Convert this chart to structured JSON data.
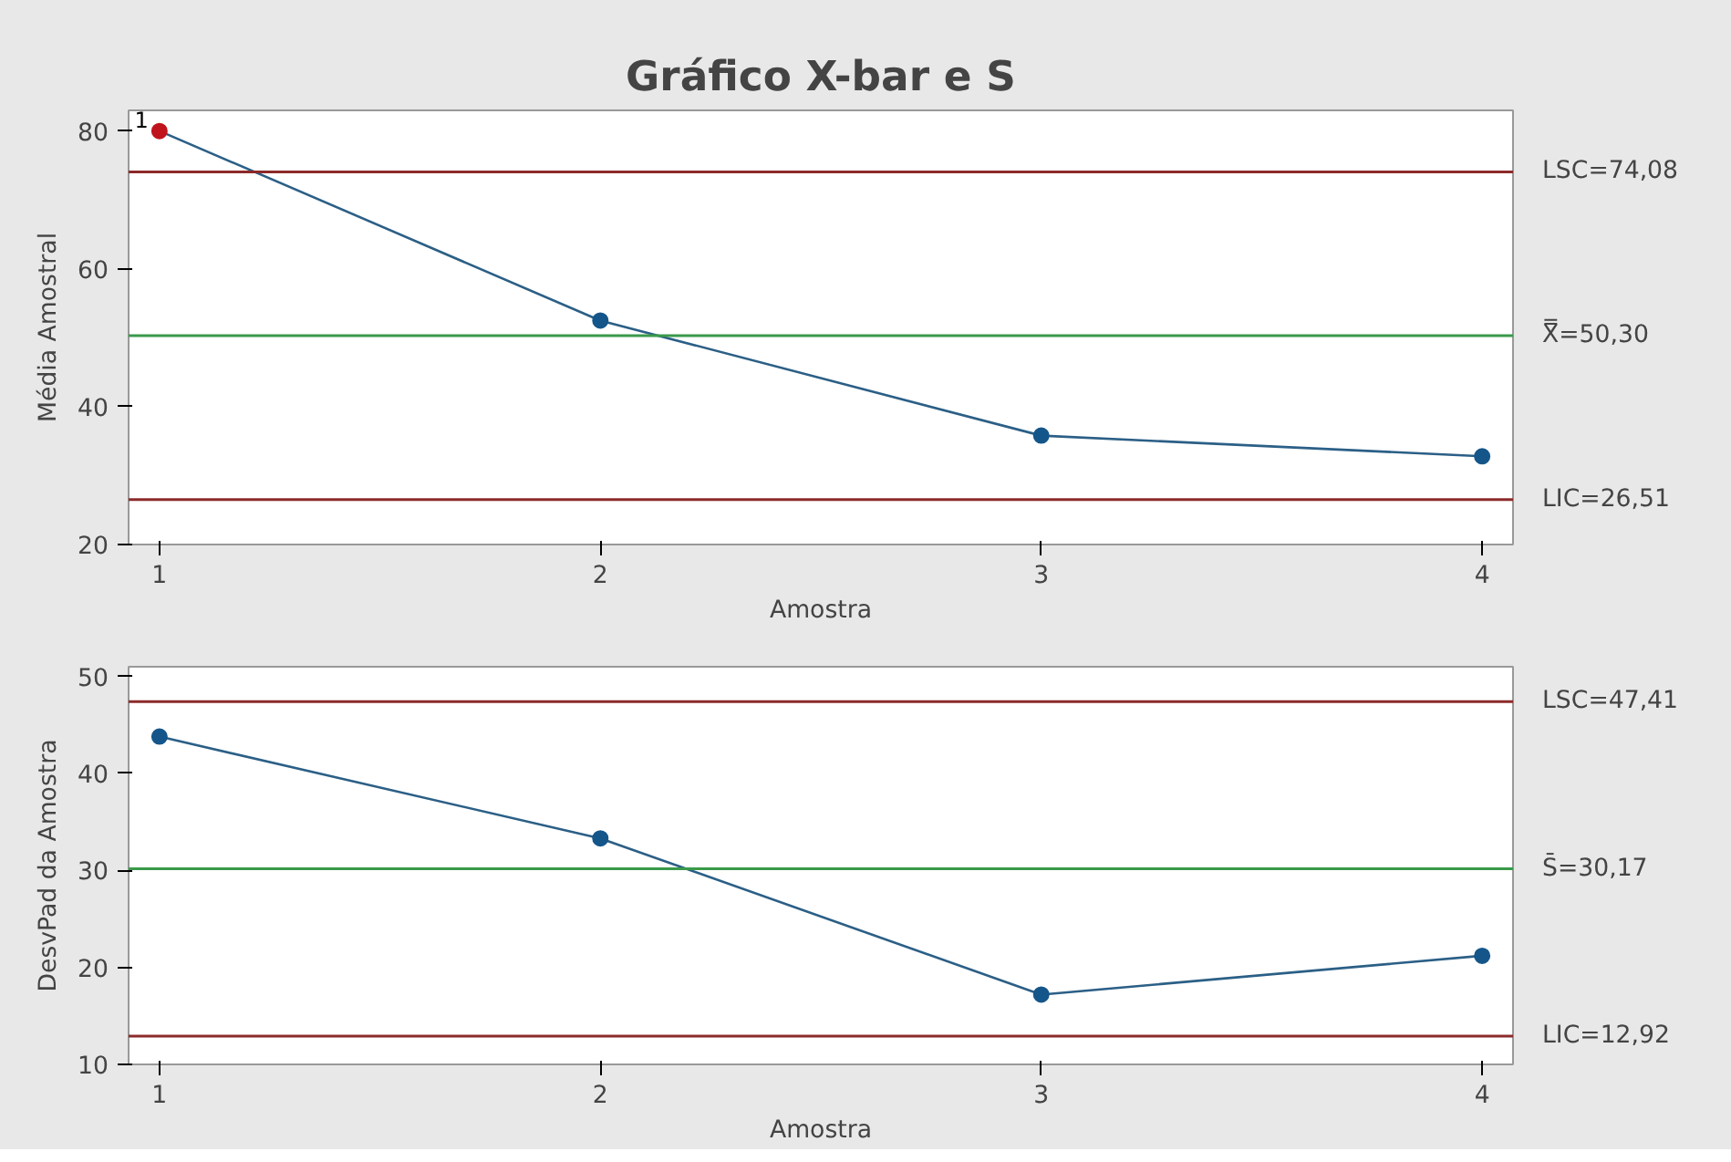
{
  "chart_data": [
    {
      "type": "line",
      "title": "Gráfico X-bar e S",
      "xlabel": "Amostra",
      "ylabel": "Média Amostral",
      "x": [
        1,
        2,
        3,
        4
      ],
      "series": [
        {
          "color": "#2b5f86",
          "colors": [
            "#c0141c",
            "#15568a",
            "#15568a",
            "#15568a"
          ],
          "values": [
            80,
            52.5,
            35.8,
            32.8
          ]
        }
      ],
      "xlim": [
        0.93,
        4.07
      ],
      "xticks": [
        1,
        2,
        3,
        4
      ],
      "ylim": [
        20,
        83
      ],
      "yticks": [
        20,
        40,
        60,
        80
      ],
      "grid": false,
      "marker": "circle",
      "line_style": "solid",
      "ref_lines": [
        {
          "axis": "y",
          "value": 74.08,
          "label": "LSC=74,08",
          "color": "#8c2a2a"
        },
        {
          "axis": "y",
          "value": 50.3,
          "label": "X̿=50,30",
          "color": "#3a9a4a"
        },
        {
          "axis": "y",
          "value": 26.51,
          "label": "LIC=26,51",
          "color": "#8c2a2a"
        }
      ],
      "annotations": [
        {
          "text": "1",
          "x": 1,
          "y": 80
        }
      ]
    },
    {
      "type": "line",
      "xlabel": "Amostra",
      "ylabel": "DesvPad da Amostra",
      "x": [
        1,
        2,
        3,
        4
      ],
      "series": [
        {
          "color": "#2b5f86",
          "colors": [
            "#15568a",
            "#15568a",
            "#15568a",
            "#15568a"
          ],
          "values": [
            43.8,
            33.3,
            17.2,
            21.2
          ]
        }
      ],
      "xlim": [
        0.93,
        4.07
      ],
      "xticks": [
        1,
        2,
        3,
        4
      ],
      "ylim": [
        10,
        51
      ],
      "yticks": [
        10,
        20,
        30,
        40,
        50
      ],
      "grid": false,
      "marker": "circle",
      "line_style": "solid",
      "ref_lines": [
        {
          "axis": "y",
          "value": 47.41,
          "label": "LSC=47,41",
          "color": "#8c2a2a"
        },
        {
          "axis": "y",
          "value": 30.17,
          "label": "S̄=30,17",
          "color": "#3a9a4a"
        },
        {
          "axis": "y",
          "value": 12.92,
          "label": "LIC=12,92",
          "color": "#8c2a2a"
        }
      ]
    }
  ]
}
